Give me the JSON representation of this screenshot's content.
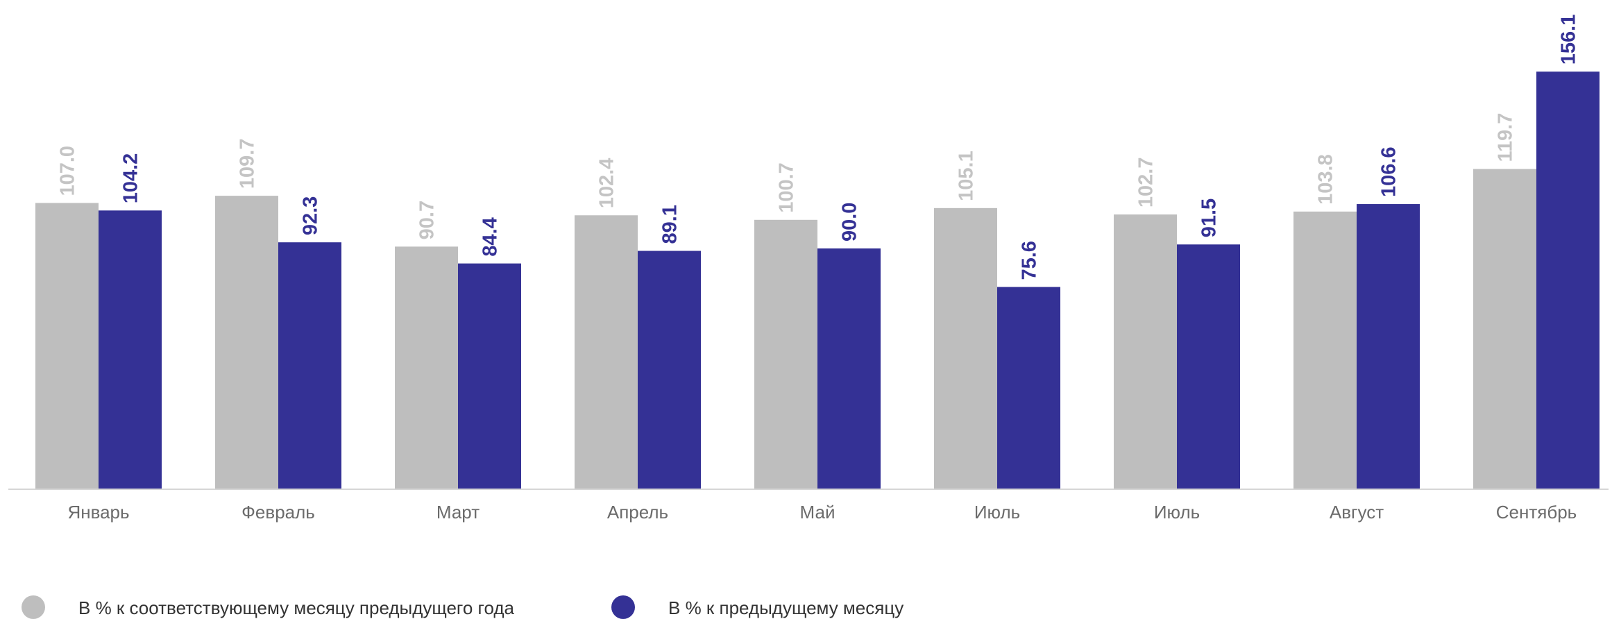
{
  "chart_data": {
    "type": "bar",
    "categories": [
      "Январь",
      "Февраль",
      "Март",
      "Апрель",
      "Май",
      "Июль",
      "Июль",
      "Август",
      "Сентябрь"
    ],
    "series": [
      {
        "name": "В % к соответствующему месяцу предыдущего года",
        "values": [
          107.0,
          109.7,
          90.7,
          102.4,
          100.7,
          105.1,
          102.7,
          103.8,
          119.7
        ],
        "labels": [
          "107.0",
          "109.7",
          "90.7",
          "102.4",
          "100.7",
          "105.1",
          "102.7",
          "103.8",
          "119.7"
        ],
        "color": "#bebebe",
        "label_color": "#c4c4c4"
      },
      {
        "name": "В % к предыдущему месяцу",
        "values": [
          104.2,
          92.3,
          84.4,
          89.1,
          90.0,
          75.6,
          91.5,
          106.6,
          156.1
        ],
        "labels": [
          "104.2",
          "92.3",
          "84.4",
          "89.1",
          "90.0",
          "75.6",
          "91.5",
          "106.6",
          "156.1"
        ],
        "color": "#343195",
        "label_color": "#343195"
      }
    ],
    "title": "",
    "xlabel": "",
    "ylabel": "",
    "ylim": [
      0,
      175
    ],
    "grid": false,
    "legend": "bottom-left"
  }
}
